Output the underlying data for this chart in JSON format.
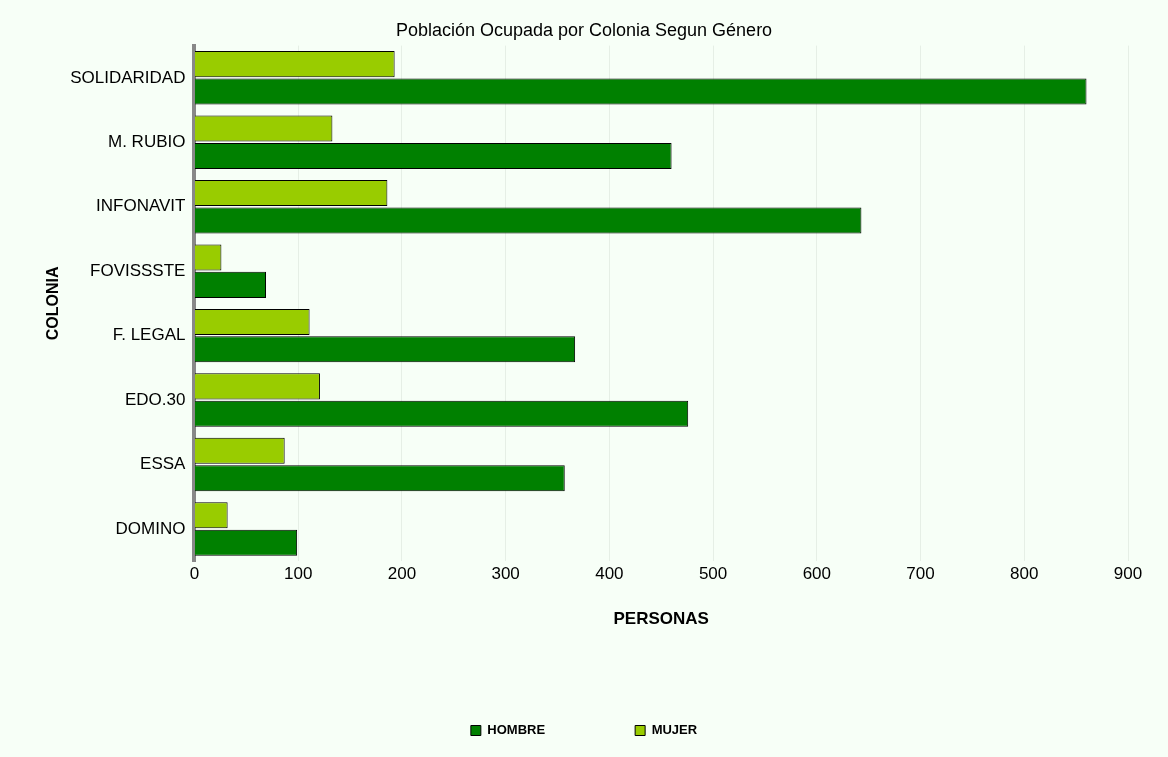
{
  "chart_data": {
    "type": "bar",
    "orientation": "horizontal",
    "title": "Población Ocupada por Colonia Segun Género",
    "xlabel": "PERSONAS",
    "ylabel": "COLONIA",
    "categories": [
      "SOLIDARIDAD",
      "M. RUBIO",
      "INFONAVIT",
      "FOVISSSTE",
      "F. LEGAL",
      "EDO.30",
      "ESSA",
      "DOMINO"
    ],
    "series": [
      {
        "name": "HOMBRE",
        "color": "#008000",
        "values": [
          860,
          460,
          643,
          69,
          367,
          476,
          357,
          99
        ]
      },
      {
        "name": "MUJER",
        "color": "#99cc00",
        "values": [
          193,
          133,
          186,
          26,
          111,
          121,
          87,
          32
        ]
      }
    ],
    "xlim": [
      0,
      900
    ],
    "xticks": [
      0,
      100,
      200,
      300,
      400,
      500,
      600,
      700,
      800,
      900
    ],
    "grid": "x",
    "legend": "bottom"
  }
}
